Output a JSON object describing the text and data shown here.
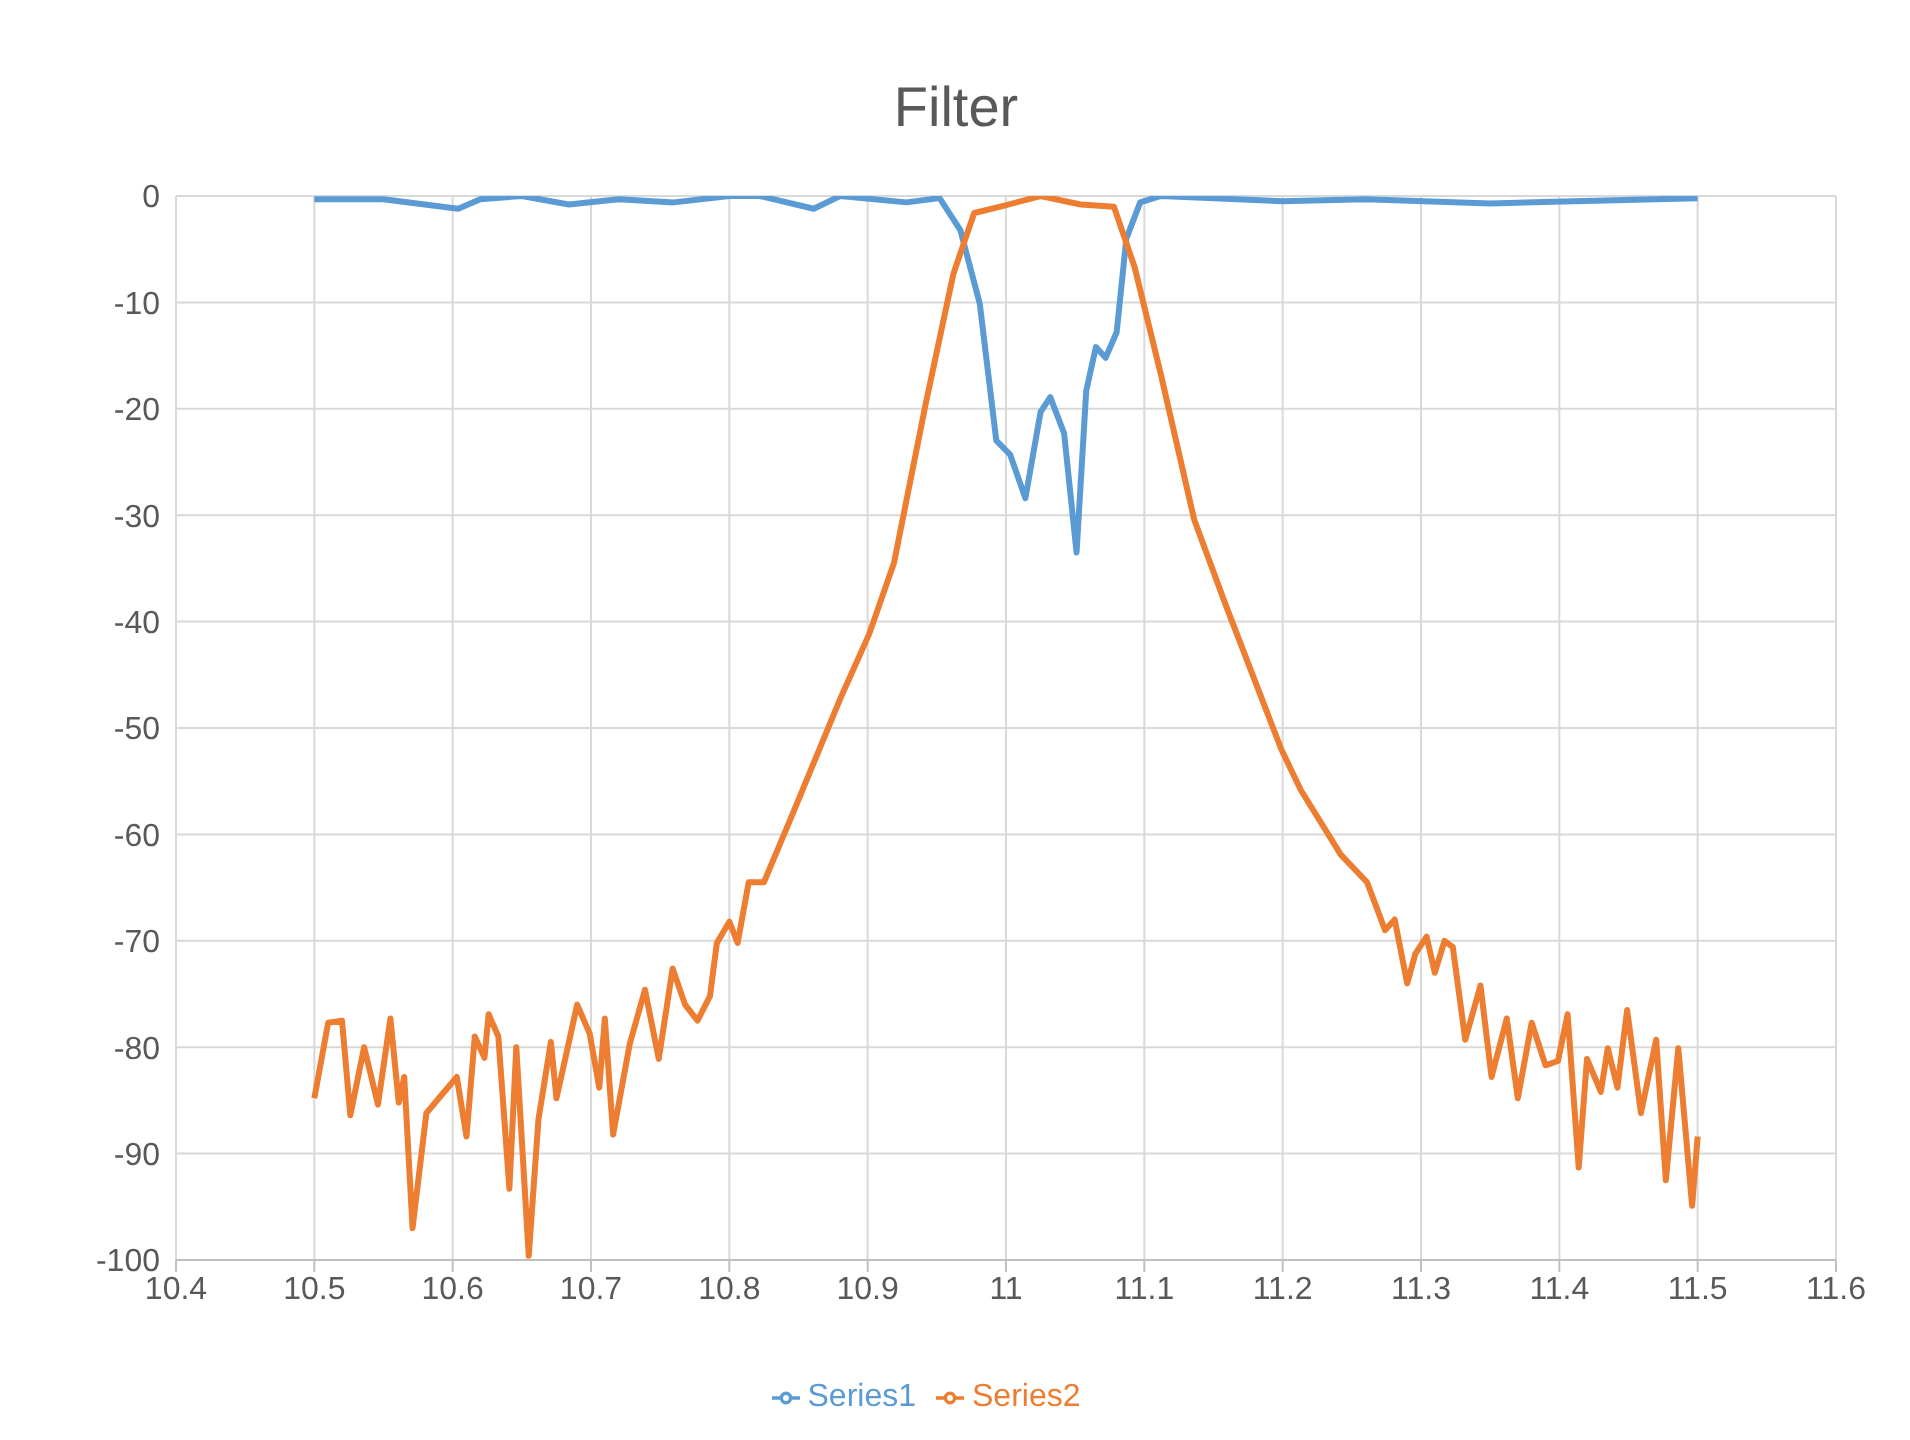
{
  "chart_data": {
    "type": "line",
    "title": "Filter",
    "xlim": [
      10.4,
      11.6
    ],
    "xticks": [
      10.4,
      10.5,
      10.6,
      10.7,
      10.8,
      10.9,
      11,
      11.1,
      11.2,
      11.3,
      11.4,
      11.5,
      11.6
    ],
    "ylim": [
      -100,
      0
    ],
    "yticks": [
      -100,
      -90,
      -80,
      -70,
      -60,
      -50,
      -40,
      -30,
      -20,
      -10,
      0
    ],
    "grid": true,
    "legend": "bottom",
    "marker": "none",
    "line_style": "solid",
    "series": [
      {
        "name": "Series1",
        "color": "#5b9bd5",
        "x": [
          10.5,
          10.55,
          10.604,
          10.62,
          10.65,
          10.684,
          10.72,
          10.76,
          10.8,
          10.822,
          10.861,
          10.88,
          10.928,
          10.952,
          10.967,
          10.981,
          10.993,
          11.003,
          11.014,
          11.025,
          11.032,
          11.042,
          11.051,
          11.058,
          11.065,
          11.072,
          11.08,
          11.087,
          11.097,
          11.112,
          11.2,
          11.26,
          11.35,
          11.5
        ],
        "values": [
          -0.3,
          -0.3,
          -1.2,
          -0.3,
          0,
          -0.8,
          -0.3,
          -0.6,
          0,
          0,
          -1.2,
          0,
          -0.6,
          -0.2,
          -3.2,
          -10.1,
          -23,
          -24.3,
          -28.4,
          -20.3,
          -18.9,
          -22.3,
          -33.5,
          -18.3,
          -14.2,
          -15.2,
          -12.8,
          -4,
          -0.6,
          0,
          -0.5,
          -0.3,
          -0.7,
          -0.2
        ]
      },
      {
        "name": "Series2",
        "color": "#ed7d31",
        "x": [
          10.5,
          10.51,
          10.52,
          10.526,
          10.536,
          10.546,
          10.555,
          10.561,
          10.565,
          10.571,
          10.581,
          10.59,
          10.603,
          10.61,
          10.616,
          10.623,
          10.626,
          10.633,
          10.641,
          10.646,
          10.655,
          10.662,
          10.671,
          10.675,
          10.681,
          10.69,
          10.699,
          10.706,
          10.71,
          10.716,
          10.728,
          10.739,
          10.749,
          10.759,
          10.768,
          10.777,
          10.786,
          10.791,
          10.8,
          10.806,
          10.814,
          10.825,
          10.846,
          10.88,
          10.901,
          10.919,
          10.942,
          10.962,
          10.977,
          10.996,
          11.025,
          11.054,
          11.078,
          11.093,
          11.112,
          11.136,
          11.159,
          11.199,
          11.213,
          11.242,
          11.261,
          11.274,
          11.281,
          11.29,
          11.296,
          11.304,
          11.31,
          11.317,
          11.323,
          11.332,
          11.343,
          11.351,
          11.362,
          11.37,
          11.38,
          11.39,
          11.399,
          11.406,
          11.414,
          11.42,
          11.43,
          11.435,
          11.442,
          11.449,
          11.459,
          11.47,
          11.477,
          11.486,
          11.496,
          11.5
        ],
        "values": [
          -84.8,
          -77.7,
          -77.5,
          -86.4,
          -80,
          -85.4,
          -77.3,
          -85.2,
          -82.8,
          -97,
          -86.2,
          -84.8,
          -82.8,
          -88.4,
          -79,
          -81,
          -76.9,
          -79,
          -93.3,
          -80,
          -99.6,
          -86.8,
          -79.5,
          -84.8,
          -81.3,
          -76,
          -78.7,
          -83.8,
          -77.3,
          -88.2,
          -79.7,
          -74.6,
          -81.1,
          -72.6,
          -76,
          -77.5,
          -75.2,
          -70.2,
          -68.2,
          -70.2,
          -64.5,
          -64.5,
          -58,
          -47.3,
          -41.2,
          -34.5,
          -19.5,
          -7.3,
          -1.6,
          -1,
          0,
          -0.8,
          -1,
          -6.7,
          -16.8,
          -30.4,
          -38.5,
          -52,
          -55.8,
          -61.9,
          -64.5,
          -69,
          -68,
          -74,
          -71.2,
          -69.6,
          -73,
          -70,
          -70.6,
          -79.3,
          -74.2,
          -82.8,
          -77.3,
          -84.8,
          -77.7,
          -81.7,
          -81.3,
          -76.9,
          -91.3,
          -81.1,
          -84.2,
          -80.1,
          -83.8,
          -76.5,
          -86.2,
          -79.3,
          -92.5,
          -80.1,
          -94.9,
          -88.4
        ]
      }
    ]
  }
}
